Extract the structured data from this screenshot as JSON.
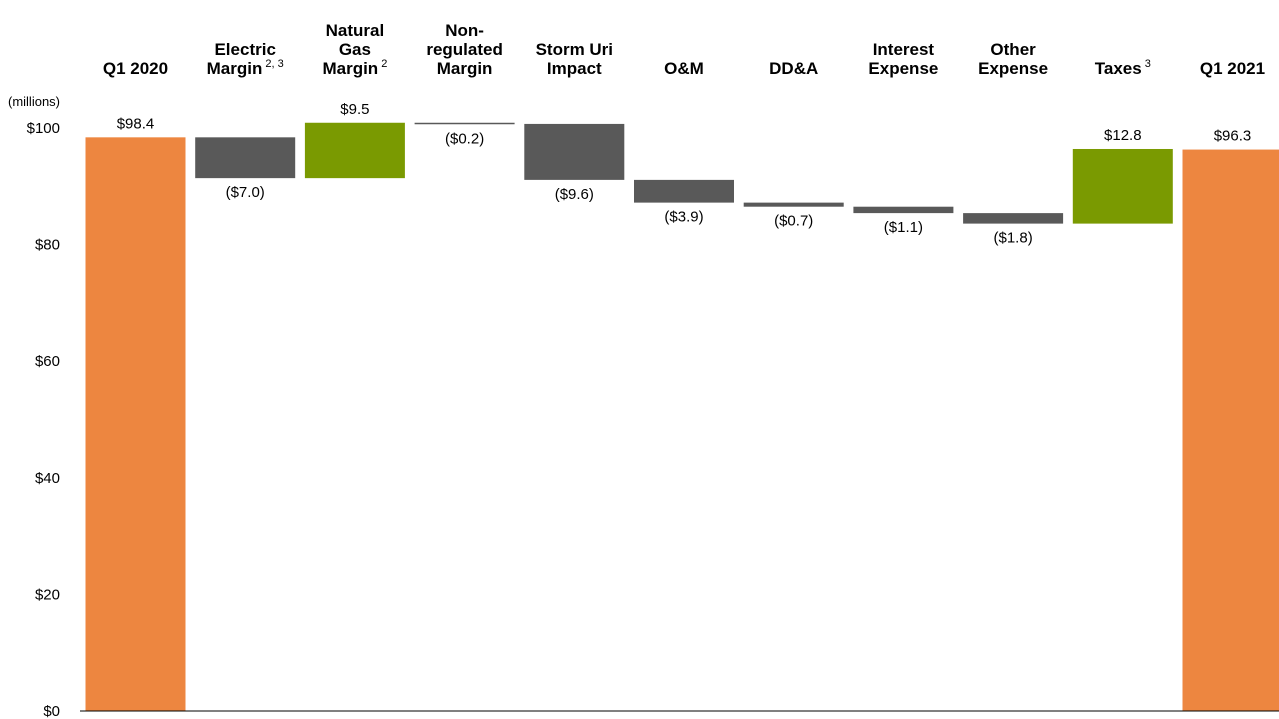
{
  "chart_data": {
    "type": "bar",
    "subtype": "waterfall",
    "title": "",
    "unit_label": "(millions)",
    "xlabel": "",
    "ylabel": "",
    "ylim": [
      0,
      100
    ],
    "y_ticks": [
      0,
      20,
      40,
      60,
      80,
      100
    ],
    "y_tick_labels": [
      "$0",
      "$20",
      "$40",
      "$60",
      "$80",
      "$100"
    ],
    "grid": false,
    "legend": "none",
    "colors": {
      "total": "#ED8640",
      "increase": "#7A9A01",
      "decrease": "#595959"
    },
    "categories": [
      {
        "lines": [
          "Q1 2020"
        ],
        "sup": ""
      },
      {
        "lines": [
          "Electric",
          "Margin"
        ],
        "sup": "2, 3"
      },
      {
        "lines": [
          "Natural",
          "Gas",
          "Margin"
        ],
        "sup": "2"
      },
      {
        "lines": [
          "Non-",
          "regulated",
          "Margin"
        ],
        "sup": ""
      },
      {
        "lines": [
          "Storm Uri",
          "Impact"
        ],
        "sup": ""
      },
      {
        "lines": [
          "O&M"
        ],
        "sup": ""
      },
      {
        "lines": [
          "DD&A"
        ],
        "sup": ""
      },
      {
        "lines": [
          "Interest",
          "Expense"
        ],
        "sup": ""
      },
      {
        "lines": [
          "Other",
          "Expense"
        ],
        "sup": ""
      },
      {
        "lines": [
          "Taxes"
        ],
        "sup": "3"
      },
      {
        "lines": [
          "Q1 2021"
        ],
        "sup": ""
      }
    ],
    "values": [
      98.4,
      -7.0,
      9.5,
      -0.2,
      -9.6,
      -3.9,
      -0.7,
      -1.1,
      -1.8,
      12.8,
      96.3
    ],
    "kinds": [
      "total",
      "decrease",
      "increase",
      "decrease",
      "decrease",
      "decrease",
      "decrease",
      "decrease",
      "decrease",
      "increase",
      "total"
    ],
    "value_labels": [
      "$98.4",
      "($7.0)",
      "$9.5",
      "($0.2)",
      "($9.6)",
      "($3.9)",
      "($0.7)",
      "($1.1)",
      "($1.8)",
      "$12.8",
      "$96.3"
    ]
  }
}
